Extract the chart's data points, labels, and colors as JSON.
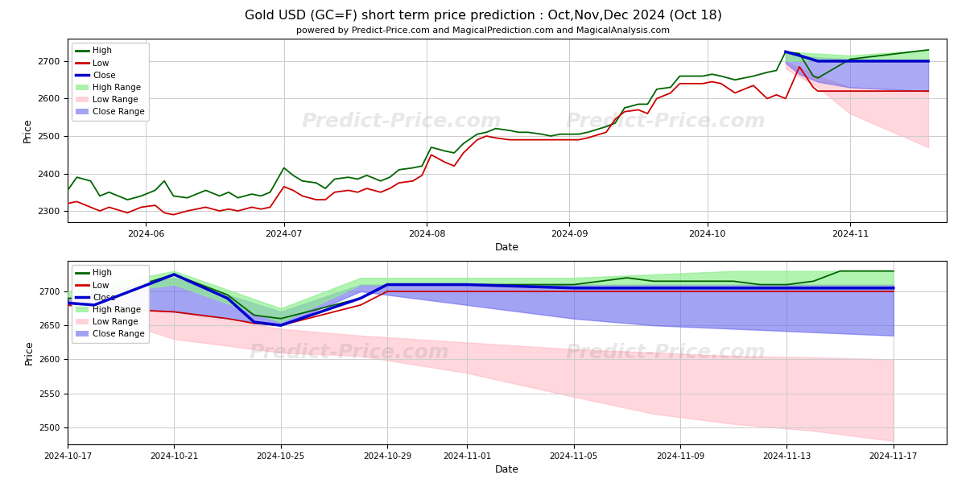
{
  "title": "Gold USD (GC=F) short term price prediction : Oct,Nov,Dec 2024 (Oct 18)",
  "subtitle": "powered by Predict-Price.com and MagicalPrediction.com and MagicalAnalysis.com",
  "xlabel": "Date",
  "ylabel": "Price",
  "watermark": "Predict-Price.com",
  "colors": {
    "high": "#006400",
    "low": "#cc0000",
    "close": "#0000cc",
    "high_range": "#90ee90",
    "low_range": "#ffb6c1",
    "close_range": "#6666ee",
    "background": "#ffffff",
    "grid": "#cccccc"
  },
  "top_chart": {
    "high_dates": [
      "2024-05-15",
      "2024-05-17",
      "2024-05-20",
      "2024-05-22",
      "2024-05-24",
      "2024-05-28",
      "2024-05-31",
      "2024-06-03",
      "2024-06-05",
      "2024-06-07",
      "2024-06-10",
      "2024-06-12",
      "2024-06-14",
      "2024-06-17",
      "2024-06-19",
      "2024-06-21",
      "2024-06-24",
      "2024-06-26",
      "2024-06-28",
      "2024-07-01",
      "2024-07-03",
      "2024-07-05",
      "2024-07-08",
      "2024-07-10",
      "2024-07-12",
      "2024-07-15",
      "2024-07-17",
      "2024-07-19",
      "2024-07-22",
      "2024-07-24",
      "2024-07-26",
      "2024-07-29",
      "2024-07-31",
      "2024-08-02",
      "2024-08-05",
      "2024-08-07",
      "2024-08-09",
      "2024-08-12",
      "2024-08-14",
      "2024-08-16",
      "2024-08-19",
      "2024-08-21",
      "2024-08-23",
      "2024-08-26",
      "2024-08-28",
      "2024-08-30",
      "2024-09-03",
      "2024-09-05",
      "2024-09-09",
      "2024-09-11",
      "2024-09-13",
      "2024-09-16",
      "2024-09-18",
      "2024-09-20",
      "2024-09-23",
      "2024-09-25",
      "2024-09-27",
      "2024-09-30",
      "2024-10-02",
      "2024-10-04",
      "2024-10-07",
      "2024-10-09",
      "2024-10-11",
      "2024-10-14",
      "2024-10-16",
      "2024-10-18",
      "2024-10-21",
      "2024-10-24",
      "2024-10-25",
      "2024-11-01",
      "2024-11-18"
    ],
    "high_values": [
      2355,
      2390,
      2380,
      2340,
      2350,
      2330,
      2340,
      2355,
      2380,
      2340,
      2335,
      2345,
      2355,
      2340,
      2350,
      2335,
      2345,
      2340,
      2350,
      2415,
      2395,
      2380,
      2375,
      2360,
      2385,
      2390,
      2385,
      2395,
      2380,
      2390,
      2410,
      2415,
      2420,
      2470,
      2460,
      2455,
      2480,
      2505,
      2510,
      2520,
      2515,
      2510,
      2510,
      2505,
      2500,
      2505,
      2505,
      2510,
      2525,
      2535,
      2575,
      2585,
      2585,
      2625,
      2630,
      2660,
      2660,
      2660,
      2665,
      2660,
      2650,
      2655,
      2660,
      2670,
      2675,
      2725,
      2720,
      2660,
      2655,
      2705,
      2730
    ],
    "low_dates": [
      "2024-05-15",
      "2024-05-17",
      "2024-05-20",
      "2024-05-22",
      "2024-05-24",
      "2024-05-28",
      "2024-05-31",
      "2024-06-03",
      "2024-06-05",
      "2024-06-07",
      "2024-06-10",
      "2024-06-12",
      "2024-06-14",
      "2024-06-17",
      "2024-06-19",
      "2024-06-21",
      "2024-06-24",
      "2024-06-26",
      "2024-06-28",
      "2024-07-01",
      "2024-07-03",
      "2024-07-05",
      "2024-07-08",
      "2024-07-10",
      "2024-07-12",
      "2024-07-15",
      "2024-07-17",
      "2024-07-19",
      "2024-07-22",
      "2024-07-24",
      "2024-07-26",
      "2024-07-29",
      "2024-07-31",
      "2024-08-02",
      "2024-08-05",
      "2024-08-07",
      "2024-08-09",
      "2024-08-12",
      "2024-08-14",
      "2024-08-16",
      "2024-08-19",
      "2024-08-21",
      "2024-08-23",
      "2024-08-26",
      "2024-08-28",
      "2024-08-30",
      "2024-09-03",
      "2024-09-05",
      "2024-09-09",
      "2024-09-11",
      "2024-09-13",
      "2024-09-16",
      "2024-09-18",
      "2024-09-20",
      "2024-09-23",
      "2024-09-25",
      "2024-09-27",
      "2024-09-30",
      "2024-10-02",
      "2024-10-04",
      "2024-10-07",
      "2024-10-09",
      "2024-10-11",
      "2024-10-14",
      "2024-10-16",
      "2024-10-18",
      "2024-10-21",
      "2024-10-24",
      "2024-10-25",
      "2024-11-01",
      "2024-11-18"
    ],
    "low_values": [
      2320,
      2325,
      2310,
      2300,
      2310,
      2295,
      2310,
      2315,
      2295,
      2290,
      2300,
      2305,
      2310,
      2300,
      2305,
      2300,
      2310,
      2305,
      2310,
      2365,
      2355,
      2340,
      2330,
      2330,
      2350,
      2355,
      2350,
      2360,
      2350,
      2360,
      2375,
      2380,
      2395,
      2450,
      2430,
      2420,
      2455,
      2490,
      2500,
      2495,
      2490,
      2490,
      2490,
      2490,
      2490,
      2490,
      2490,
      2495,
      2510,
      2545,
      2565,
      2570,
      2560,
      2600,
      2615,
      2640,
      2640,
      2640,
      2645,
      2640,
      2615,
      2625,
      2635,
      2600,
      2610,
      2600,
      2685,
      2630,
      2620,
      2620,
      2620
    ],
    "close_dates": [
      "2024-10-18",
      "2024-10-21",
      "2024-10-25",
      "2024-11-01",
      "2024-11-18"
    ],
    "close_values": [
      2725,
      2715,
      2700,
      2700,
      2700
    ],
    "forecast_start_date": "2024-10-18",
    "forecast_end_date": "2024-11-18",
    "high_range_dates": [
      "2024-10-18",
      "2024-11-01",
      "2024-11-18"
    ],
    "high_range_upper": [
      2725,
      2715,
      2730
    ],
    "high_range_lower": [
      2700,
      2705,
      2700
    ],
    "low_range_dates": [
      "2024-10-18",
      "2024-10-25",
      "2024-11-01",
      "2024-11-18"
    ],
    "low_range_upper": [
      2700,
      2660,
      2630,
      2620
    ],
    "low_range_lower": [
      2680,
      2630,
      2560,
      2470
    ],
    "close_range_dates": [
      "2024-10-18",
      "2024-10-21",
      "2024-10-25",
      "2024-11-01",
      "2024-11-18"
    ],
    "close_range_upper": [
      2725,
      2715,
      2710,
      2705,
      2700
    ],
    "close_range_lower": [
      2695,
      2665,
      2645,
      2630,
      2620
    ],
    "ylim": [
      2270,
      2760
    ],
    "xlim_start": "2024-05-15",
    "xlim_end": "2024-11-22"
  },
  "bottom_chart": {
    "high_dates": [
      "2024-10-17",
      "2024-10-18",
      "2024-10-21",
      "2024-10-23",
      "2024-10-24",
      "2024-10-25",
      "2024-10-28",
      "2024-10-29",
      "2024-10-30",
      "2024-10-31",
      "2024-11-01",
      "2024-11-04",
      "2024-11-05",
      "2024-11-06",
      "2024-11-07",
      "2024-11-08",
      "2024-11-11",
      "2024-11-12",
      "2024-11-13",
      "2024-11-14",
      "2024-11-15",
      "2024-11-17"
    ],
    "high_values": [
      2690,
      2690,
      2725,
      2695,
      2665,
      2660,
      2690,
      2710,
      2710,
      2710,
      2710,
      2710,
      2710,
      2715,
      2720,
      2715,
      2715,
      2710,
      2710,
      2715,
      2730,
      2730
    ],
    "low_dates": [
      "2024-10-17",
      "2024-10-18",
      "2024-10-21",
      "2024-10-23",
      "2024-10-24",
      "2024-10-25",
      "2024-10-28",
      "2024-10-29",
      "2024-10-30",
      "2024-10-31",
      "2024-11-01",
      "2024-11-04",
      "2024-11-05",
      "2024-11-06",
      "2024-11-07",
      "2024-11-08",
      "2024-11-11",
      "2024-11-12",
      "2024-11-13",
      "2024-11-14",
      "2024-11-15",
      "2024-11-17"
    ],
    "low_values": [
      2680,
      2675,
      2670,
      2660,
      2653,
      2650,
      2680,
      2700,
      2700,
      2700,
      2700,
      2700,
      2700,
      2700,
      2700,
      2700,
      2700,
      2700,
      2700,
      2700,
      2700,
      2700
    ],
    "close_dates": [
      "2024-10-17",
      "2024-10-18",
      "2024-10-21",
      "2024-10-23",
      "2024-10-24",
      "2024-10-25",
      "2024-10-28",
      "2024-10-29",
      "2024-10-31",
      "2024-11-01",
      "2024-11-05",
      "2024-11-08",
      "2024-11-11",
      "2024-11-14",
      "2024-11-17"
    ],
    "close_values": [
      2683,
      2680,
      2725,
      2690,
      2655,
      2650,
      2690,
      2710,
      2710,
      2710,
      2705,
      2705,
      2705,
      2705,
      2705
    ],
    "high_range_dates": [
      "2024-10-17",
      "2024-10-21",
      "2024-10-25",
      "2024-10-28",
      "2024-11-01",
      "2024-11-05",
      "2024-11-08",
      "2024-11-11",
      "2024-11-14",
      "2024-11-17"
    ],
    "high_range_upper": [
      2700,
      2730,
      2675,
      2720,
      2720,
      2720,
      2725,
      2730,
      2730,
      2730
    ],
    "high_range_lower": [
      2690,
      2710,
      2655,
      2710,
      2710,
      2710,
      2710,
      2710,
      2710,
      2710
    ],
    "low_range_dates": [
      "2024-10-17",
      "2024-10-21",
      "2024-10-25",
      "2024-10-28",
      "2024-11-01",
      "2024-11-05",
      "2024-11-08",
      "2024-11-11",
      "2024-11-14",
      "2024-11-17"
    ],
    "low_range_upper": [
      2685,
      2670,
      2645,
      2635,
      2625,
      2615,
      2610,
      2605,
      2603,
      2600
    ],
    "low_range_lower": [
      2680,
      2630,
      2610,
      2605,
      2580,
      2545,
      2520,
      2505,
      2495,
      2480
    ],
    "close_range_dates": [
      "2024-10-17",
      "2024-10-21",
      "2024-10-25",
      "2024-10-28",
      "2024-11-01",
      "2024-11-05",
      "2024-11-08",
      "2024-11-11",
      "2024-11-14",
      "2024-11-17"
    ],
    "close_range_upper": [
      2690,
      2720,
      2670,
      2710,
      2710,
      2710,
      2710,
      2710,
      2710,
      2710
    ],
    "close_range_lower": [
      2680,
      2670,
      2650,
      2700,
      2680,
      2660,
      2650,
      2645,
      2640,
      2635
    ],
    "ylim": [
      2475,
      2745
    ],
    "xlim_start": "2024-10-17",
    "xlim_end": "2024-11-19"
  }
}
